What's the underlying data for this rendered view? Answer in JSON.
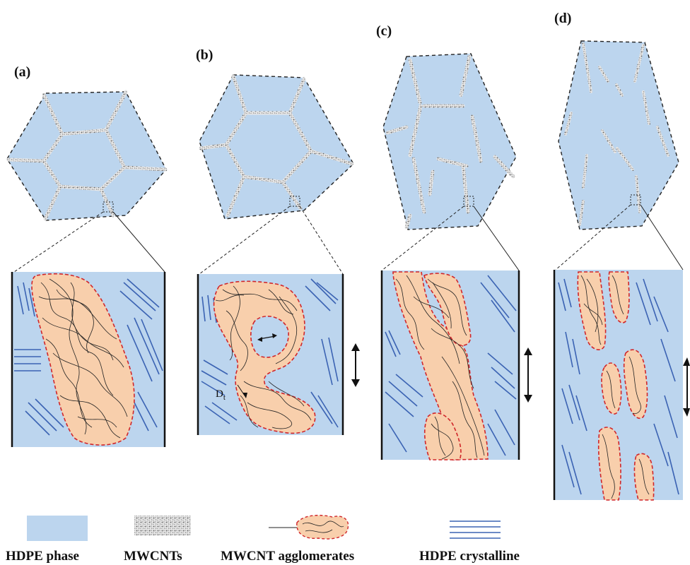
{
  "panels": [
    {
      "label": "(a)"
    },
    {
      "label": "(b)"
    },
    {
      "label": "(c)"
    },
    {
      "label": "(d)"
    }
  ],
  "annotations": {
    "thickness_symbol": "D",
    "thickness_subscript": "t"
  },
  "legend": [
    {
      "label": "HDPE phase"
    },
    {
      "label": "MWCNTs"
    },
    {
      "label": "MWCNT agglomerates"
    },
    {
      "label": "HDPE crystalline"
    }
  ],
  "colors": {
    "hdpe_phase": "#bcd5ee",
    "mwcnt_agglomerate_fill": "#f8cfac",
    "agglomerate_outline": "#d0262a",
    "crystalline_lines": "#3b63b3",
    "mwcnt_texture": "#8a8a8a"
  }
}
